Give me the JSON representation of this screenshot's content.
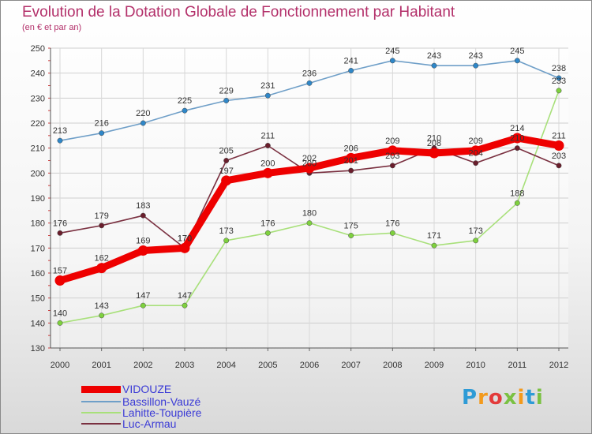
{
  "chart_data": {
    "type": "line",
    "title": "Evolution de la Dotation Globale de Fonctionnement par Habitant",
    "subtitle": "(en € et par an)",
    "xlabel": "",
    "ylabel": "",
    "ylim": [
      130,
      250
    ],
    "yticks": [
      130,
      140,
      150,
      160,
      170,
      180,
      190,
      200,
      210,
      220,
      230,
      240,
      250
    ],
    "categories": [
      "2000",
      "2001",
      "2002",
      "2003",
      "2004",
      "2005",
      "2006",
      "2007",
      "2008",
      "2009",
      "2010",
      "2011",
      "2012"
    ],
    "series": [
      {
        "name": "Bassillon-Vauzé",
        "color": "#6f9fc8",
        "marker": "#2f87c8",
        "width": "thin",
        "values": [
          213,
          216,
          220,
          225,
          229,
          231,
          236,
          241,
          245,
          243,
          243,
          245,
          238
        ]
      },
      {
        "name": "Lahitte-Toupière",
        "color": "#a8e07a",
        "marker": "#7ed13e",
        "width": "thin",
        "values": [
          140,
          143,
          147,
          147,
          173,
          176,
          180,
          175,
          176,
          171,
          173,
          188,
          233
        ]
      },
      {
        "name": "Luc-Armau",
        "color": "#7a3040",
        "marker": "#6a1e2c",
        "width": "thin",
        "values": [
          176,
          179,
          183,
          170,
          205,
          211,
          200,
          201,
          203,
          210,
          204,
          210,
          203
        ]
      },
      {
        "name": "VIDOUZE",
        "color": "#ee0000",
        "marker": "#ee0000",
        "width": "thick",
        "values": [
          157,
          162,
          169,
          170,
          197,
          200,
          202,
          206,
          209,
          208,
          209,
          214,
          211
        ]
      }
    ],
    "legend_order": [
      "VIDOUZE",
      "Bassillon-Vauzé",
      "Lahitte-Toupière",
      "Luc-Armau"
    ],
    "legend_position": "bottom-left"
  },
  "brand": "Proxiti"
}
